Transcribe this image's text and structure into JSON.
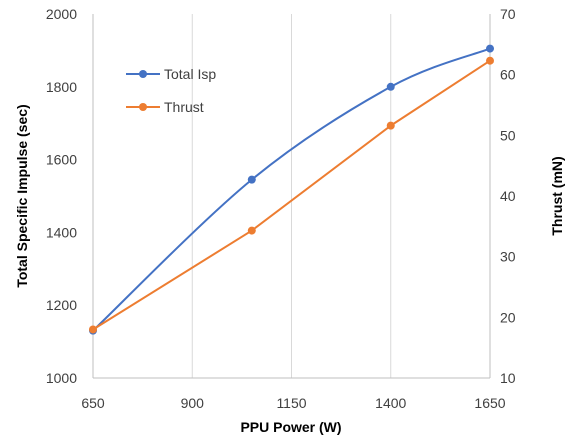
{
  "chart_data": {
    "type": "line",
    "title": "",
    "xlabel": "PPU Power (W)",
    "ylabel_left": "Total Specific Impulse (sec)",
    "ylabel_right": "Thrust (mN)",
    "x_ticks": [
      650,
      900,
      1150,
      1400,
      1650
    ],
    "y_left_ticks": [
      1000,
      1200,
      1400,
      1600,
      1800,
      2000
    ],
    "y_right_ticks": [
      10,
      20,
      30,
      40,
      50,
      60,
      70
    ],
    "xlim": [
      650,
      1650
    ],
    "ylim_left": [
      1000,
      2000
    ],
    "ylim_right": [
      10,
      70
    ],
    "grid": "vertical",
    "legend_position": "top-left",
    "series": [
      {
        "name": "Total Isp",
        "axis": "left",
        "color": "#4472c4",
        "smooth": true,
        "x": [
          650,
          1050,
          1400,
          1650
        ],
        "values": [
          1130,
          1545,
          1800,
          1905
        ]
      },
      {
        "name": "Thrust",
        "axis": "right",
        "color": "#ed7d31",
        "smooth": false,
        "x": [
          650,
          1050,
          1400,
          1650
        ],
        "values": [
          18,
          34.3,
          51.6,
          62.3
        ]
      }
    ]
  }
}
